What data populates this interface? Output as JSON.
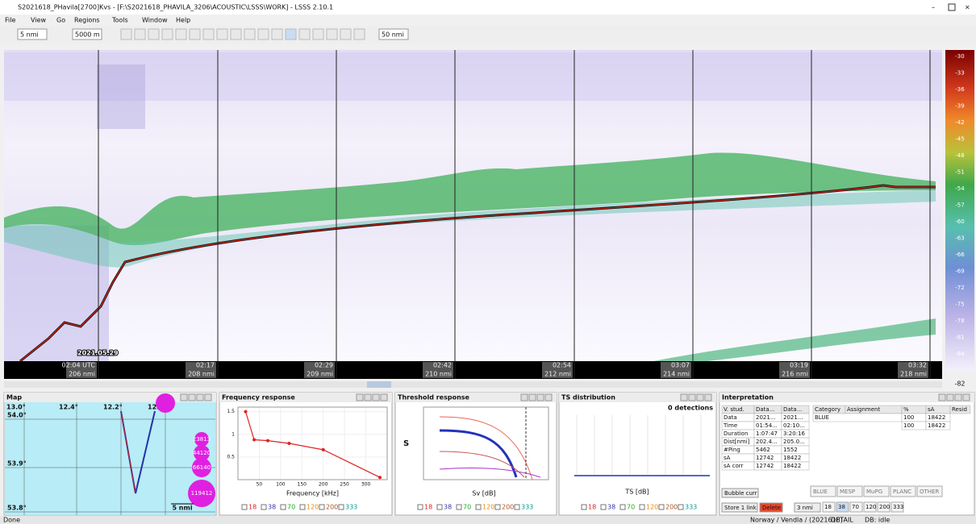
{
  "window": {
    "title": "S2021618_PHavila[2700]Kvs - [F:\\S2021618_PHAVILA_3206\\ACOUSTIC\\LSSS\\WORK] - LSSS 2.10.1",
    "menu": [
      "File",
      "View",
      "Go",
      "Regions",
      "Tools",
      "Window",
      "Help"
    ],
    "toolbar": [
      "5 nmi",
      "5000 m",
      "50 nmi"
    ]
  },
  "echogram": {
    "date": "2021.05.29",
    "times": [
      "02:04 UTC",
      "02:17",
      "02:29",
      "02:42",
      "02:54",
      "03:07",
      "03:19",
      "03:32"
    ],
    "distances": [
      "206 nmi",
      "208 nmi",
      "209 nmi",
      "210 nmi",
      "212 nmi",
      "214 nmi",
      "216 nmi",
      "218 nmi"
    ],
    "scale": [
      "-30",
      "-33",
      "-36",
      "-39",
      "-42",
      "-45",
      "-48",
      "-51",
      "-54",
      "-57",
      "-60",
      "-63",
      "-66",
      "-69",
      "-72",
      "-75",
      "-78",
      "-81",
      "-84"
    ],
    "scale_min": "-82"
  },
  "map": {
    "title": "Map",
    "lon_labels": [
      "13.0°",
      "12.4°",
      "12.2°",
      "12.0°"
    ],
    "lat_labels": [
      "54.0°",
      "53.9°",
      "53.8°"
    ],
    "bubbles": [
      "23813",
      "44120",
      "66140",
      "119412"
    ],
    "scale": "5 nmi"
  },
  "frequencies": [
    "18",
    "38",
    "70",
    "120",
    "200",
    "333"
  ],
  "frequency_response": {
    "title": "Frequency response",
    "xlabel": "Frequency [kHz]",
    "x": [
      18,
      38,
      70,
      120,
      200,
      333
    ],
    "values": [
      1.5,
      0.88,
      0.86,
      0.8,
      0.66,
      0.05
    ],
    "xlim": [
      0,
      350
    ],
    "xticks": [
      50,
      100,
      150,
      200,
      250,
      300
    ],
    "ylim": [
      0,
      1.6
    ],
    "yticks": [
      0.5,
      1.0,
      1.5
    ]
  },
  "threshold_response": {
    "title": "Threshold response",
    "xlabel": "Sv [dB]",
    "ylabel": "S"
  },
  "ts_distribution": {
    "title": "TS distribution",
    "count": "0 detections",
    "xlabel": "TS [dB]"
  },
  "interpretation": {
    "title": "Interpretation",
    "header": [
      "V. stud.",
      "Data...",
      "Data..."
    ],
    "rows": [
      [
        "Data",
        "2021...",
        "2021..."
      ],
      [
        "Time",
        "01:54...",
        "02:10..."
      ],
      [
        "Duration",
        "1:07:47",
        "3:20:16"
      ],
      [
        "Dist[nmi]",
        "202.4...",
        "205.0..."
      ],
      [
        "#Ping",
        "5462",
        "1552"
      ],
      [
        "sA",
        "12742",
        "18422"
      ],
      [
        "sA corr",
        "12742",
        "18422"
      ]
    ],
    "cat_header": [
      "Category",
      "Assignment",
      "%",
      "sA",
      "Resid"
    ],
    "cat_rows": [
      [
        "BLUE",
        "100",
        "18422"
      ],
      [
        "100",
        "18422"
      ]
    ],
    "buttons": [
      "Bubble curr",
      "Store 1 link",
      "Delete",
      "3 nmi"
    ],
    "categories": [
      "BLUE",
      "MESP",
      "MuPG",
      "PLANC",
      "OTHER"
    ]
  },
  "status": {
    "left": "Done",
    "survey": "Norway / Vendla / (2021618)",
    "mode": "DETAIL",
    "db": "DB: idle"
  }
}
